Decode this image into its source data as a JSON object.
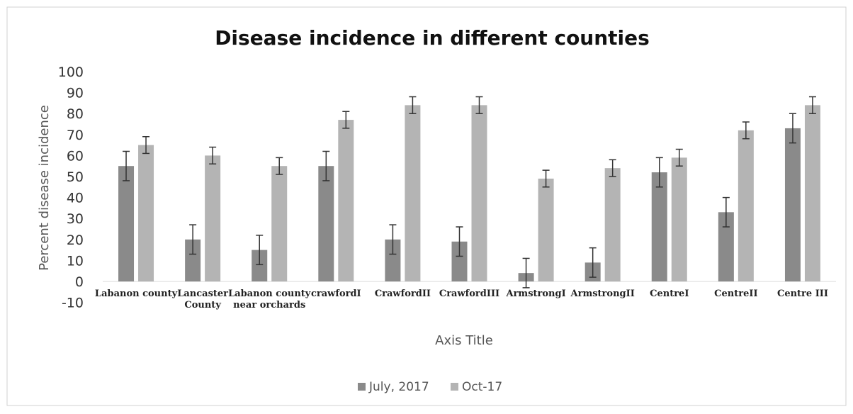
{
  "chart_data": {
    "type": "bar",
    "title": "Disease incidence in different counties",
    "xlabel": "Axis Title",
    "ylabel": "Percent disease incidence",
    "ylim": [
      -10,
      100
    ],
    "ytick_step": 10,
    "grid": false,
    "legend_position": "bottom",
    "categories": [
      "Labanon county",
      "Lancaster County",
      "Labanon county near orchards",
      "crawfordI",
      "CrawfordII",
      "CrawfordIII",
      "ArmstrongI",
      "ArmstrongII",
      "CentreI",
      "CentreII",
      "Centre III"
    ],
    "series": [
      {
        "name": "July, 2017",
        "color": "#8a8a8a",
        "values": [
          55,
          20,
          15,
          55,
          20,
          19,
          4,
          9,
          52,
          33,
          73
        ],
        "error": [
          7,
          7,
          7,
          7,
          7,
          7,
          7,
          7,
          7,
          7,
          7
        ]
      },
      {
        "name": "Oct-17",
        "color": "#b4b4b4",
        "values": [
          65,
          60,
          55,
          77,
          84,
          84,
          49,
          54,
          59,
          72,
          84
        ],
        "error": [
          4,
          4,
          4,
          4,
          4,
          4,
          4,
          4,
          4,
          4,
          4
        ]
      }
    ]
  }
}
